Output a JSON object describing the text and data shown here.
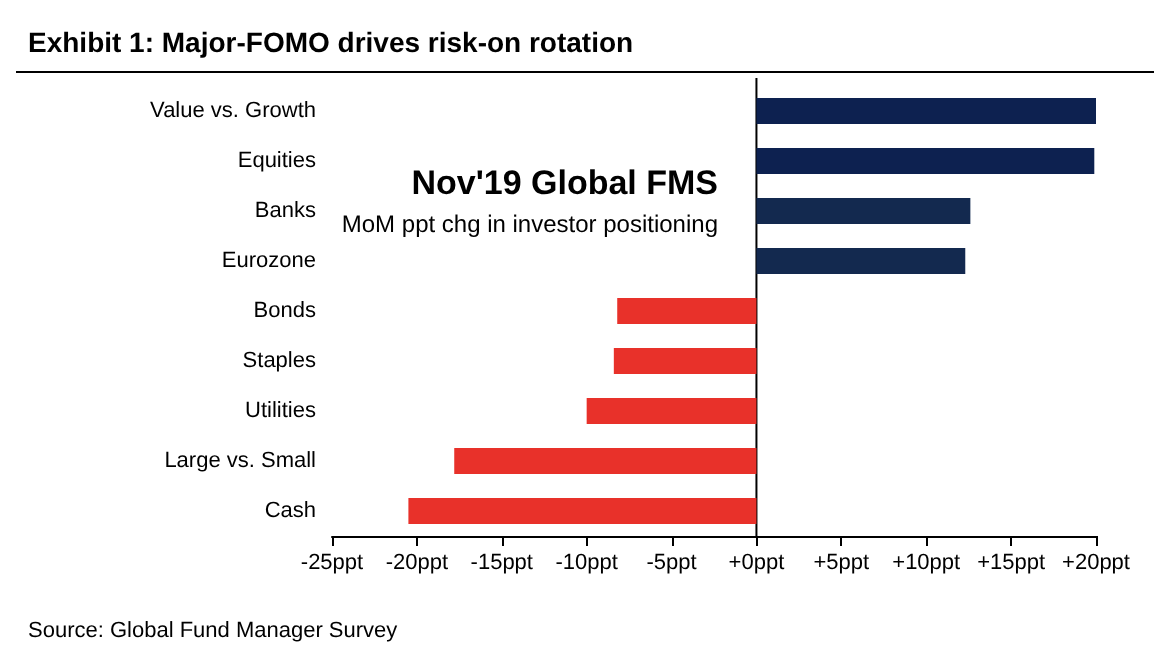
{
  "chart_data": {
    "type": "bar",
    "orientation": "horizontal",
    "title": "Exhibit 1: Major-FOMO drives risk-on rotation",
    "subtitle": "Nov'19 Global FMS",
    "annotations": [
      "MoM ppt chg in investor positioning",
      "Source: Global Fund Manager Survey"
    ],
    "categories": [
      "Value vs. Growth",
      "Equities",
      "Banks",
      "Eurozone",
      "Bonds",
      "Staples",
      "Utilities",
      "Large vs. Small",
      "Cash"
    ],
    "values": [
      20,
      19.9,
      12.6,
      12.3,
      -8.2,
      -8.4,
      -10.0,
      -17.8,
      -20.5
    ],
    "colors": [
      "#0d2150",
      "#0d2150",
      "#13294f",
      "#13294f",
      "#e8312a",
      "#e8312a",
      "#e8312a",
      "#e8312a",
      "#e8312a"
    ],
    "xlim": [
      -25,
      20
    ],
    "xticks": [
      {
        "value": -25,
        "label": "-25ppt"
      },
      {
        "value": -20,
        "label": "-20ppt"
      },
      {
        "value": -15,
        "label": "-15ppt"
      },
      {
        "value": -10,
        "label": "-10ppt"
      },
      {
        "value": -5,
        "label": "-5ppt"
      },
      {
        "value": 0,
        "label": "+0ppt"
      },
      {
        "value": 5,
        "label": "+5ppt"
      },
      {
        "value": 10,
        "label": "+10ppt"
      },
      {
        "value": 15,
        "label": "+15ppt"
      },
      {
        "value": 20,
        "label": "+20ppt"
      }
    ]
  }
}
